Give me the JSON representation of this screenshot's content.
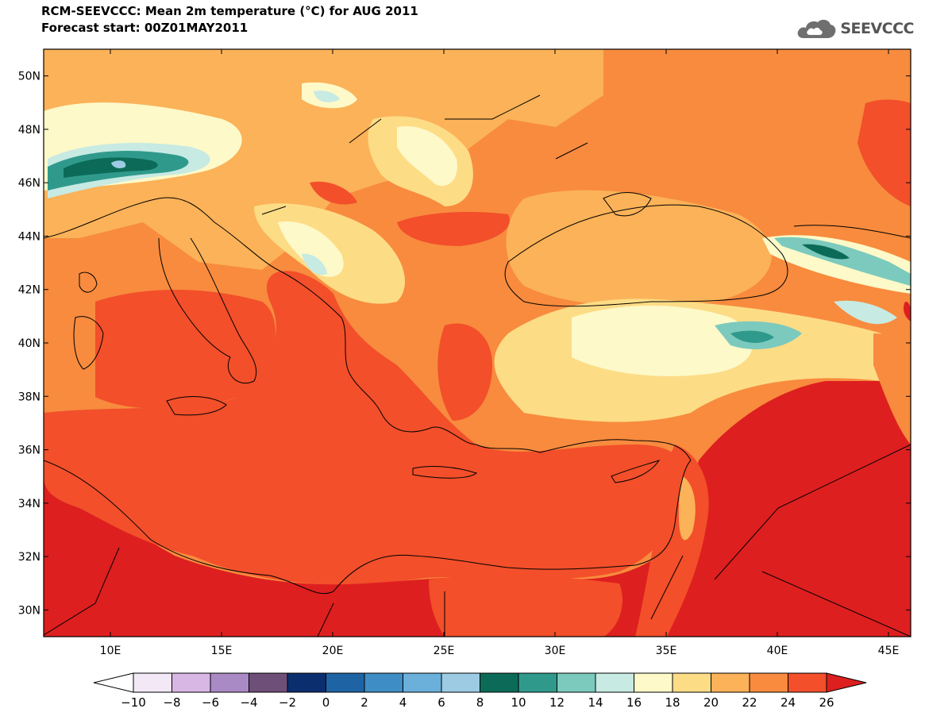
{
  "header": {
    "title": "RCM-SEEVCCC: Mean 2m temperature (°C) for AUG 2011",
    "subtitle": "Forecast start: 00Z01MAY2011"
  },
  "logo": {
    "text": "SEEVCCC",
    "icon": "cloud-icon"
  },
  "map": {
    "lat_labels": [
      "30N",
      "32N",
      "34N",
      "36N",
      "38N",
      "40N",
      "42N",
      "44N",
      "46N",
      "48N",
      "50N"
    ],
    "lon_labels": [
      "10E",
      "15E",
      "20E",
      "25E",
      "30E",
      "35E",
      "40E",
      "45E"
    ],
    "lat_range": [
      29,
      51
    ],
    "lon_range": [
      7,
      46
    ]
  },
  "colorbar": {
    "labels": [
      "−10",
      "−8",
      "−6",
      "−4",
      "−2",
      "0",
      "2",
      "4",
      "6",
      "8",
      "10",
      "12",
      "14",
      "16",
      "18",
      "20",
      "22",
      "24",
      "26"
    ],
    "colors": [
      "#f2e8f6",
      "#d8b7e4",
      "#a98ac4",
      "#6e4f78",
      "#0b2f6e",
      "#1e64a4",
      "#3f8dc5",
      "#6ab0da",
      "#9dcbe3",
      "#0b6b58",
      "#2f9a8c",
      "#7ccabd",
      "#c7eae3",
      "#fdf9c8",
      "#fddc86",
      "#fbb258",
      "#f88b3e",
      "#f24f2a"
    ],
    "under_color": "#ffffff",
    "over_color": "#de1f1f"
  }
}
